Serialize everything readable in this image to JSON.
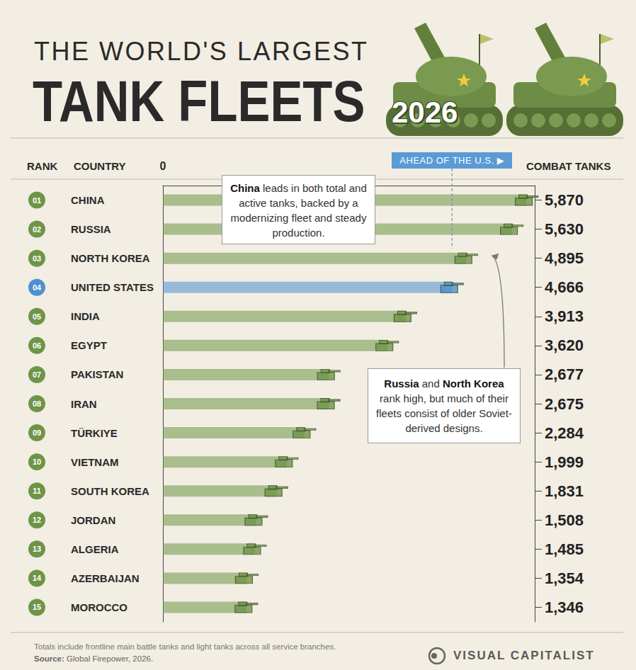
{
  "chart_data": {
    "type": "bar",
    "orientation": "horizontal",
    "title": "THE WORLD'S LARGEST",
    "subtitle": "TANK FLEETS",
    "badge": "2026",
    "headers": {
      "rank": "RANK",
      "country": "COUNTRY",
      "value": "COMBAT TANKS"
    },
    "ranks": [
      "01",
      "02",
      "03",
      "04",
      "05",
      "06",
      "07",
      "08",
      "09",
      "10",
      "11",
      "12",
      "13",
      "14",
      "15"
    ],
    "categories": [
      "CHINA",
      "RUSSIA",
      "NORTH KOREA",
      "UNITED STATES",
      "INDIA",
      "EGYPT",
      "PAKISTAN",
      "IRAN",
      "TÜRKIYE",
      "VIETNAM",
      "SOUTH KOREA",
      "JORDAN",
      "ALGERIA",
      "AZERBAIJAN",
      "MOROCCO"
    ],
    "values": [
      5870,
      5630,
      4895,
      4666,
      3913,
      3620,
      2677,
      2675,
      2284,
      1999,
      1831,
      1508,
      1485,
      1354,
      1346
    ],
    "value_labels": [
      "5,870",
      "5,630",
      "4,895",
      "4,666",
      "3,913",
      "3,620",
      "2,677",
      "2,675",
      "2,284",
      "1,999",
      "1,831",
      "1,508",
      "1,485",
      "1,354",
      "1,346"
    ],
    "data_labels": true,
    "color": "#6e9547",
    "colors": [
      "#6e9547",
      "#6e9547",
      "#6e9547",
      "#4f8fd0",
      "#6e9547",
      "#6e9547",
      "#6e9547",
      "#6e9547",
      "#6e9547",
      "#6e9547",
      "#6e9547",
      "#6e9547",
      "#6e9547",
      "#6e9547",
      "#6e9547"
    ],
    "marker": "tank",
    "xlim": [
      0,
      6000
    ],
    "xticks": [
      0
    ],
    "grid": false,
    "reference": {
      "label": "AHEAD OF THE U.S. ▶",
      "category": "UNITED STATES"
    },
    "annotations": [
      {
        "text": "China leads in both total and active tanks, backed by a modernizing fleet and steady production.",
        "bold": [
          "China"
        ]
      },
      {
        "text": "Russia and North Korea rank high, but much of their fleets consist of older Soviet-derived designs.",
        "bold": [
          "Russia",
          "North Korea"
        ]
      }
    ],
    "note": "Totals include frontline main battle tanks and light tanks across all service branches.",
    "source": "Source: Global Firepower, 2026.",
    "brand": "VISUAL CAPITALIST"
  }
}
